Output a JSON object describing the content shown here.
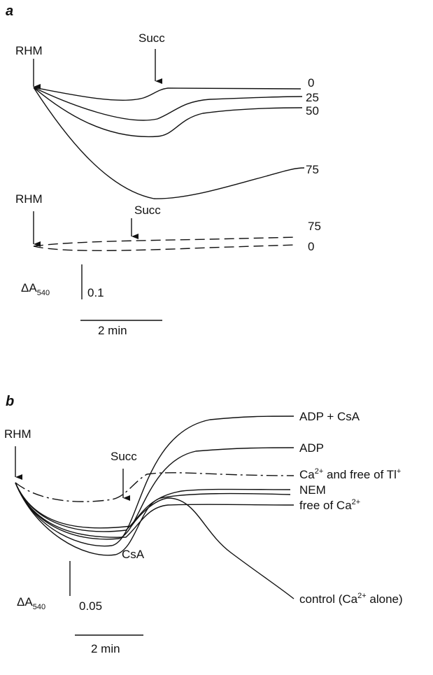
{
  "panel_a": {
    "letter": "a",
    "start_label": "RHM",
    "succ_label": "Succ",
    "curve_labels": [
      "0",
      "25",
      "50",
      "75"
    ],
    "start_label_2": "RHM",
    "succ_label_2": "Succ",
    "dashed_labels": [
      "75",
      "0"
    ],
    "scale_y_label": [
      "ΔA",
      "540"
    ],
    "scale_y_value": "0.1",
    "scale_x_value": "2 min"
  },
  "panel_b": {
    "letter": "b",
    "start_label": "RHM",
    "succ_label": "Succ",
    "curve_labels": {
      "adp_csa": "ADP + CsA",
      "adp": "ADP",
      "ca_free_tl": [
        "Ca",
        "2+",
        " and free of Tl",
        "+"
      ],
      "nem": "NEM",
      "free_ca": [
        "free of Ca",
        "2+"
      ],
      "csa": "CsA",
      "control": [
        "control (Ca",
        "2+",
        " alone)"
      ]
    },
    "scale_y_label": [
      "ΔA",
      "540"
    ],
    "scale_y_value": "0.05",
    "scale_x_value": "2 min"
  }
}
